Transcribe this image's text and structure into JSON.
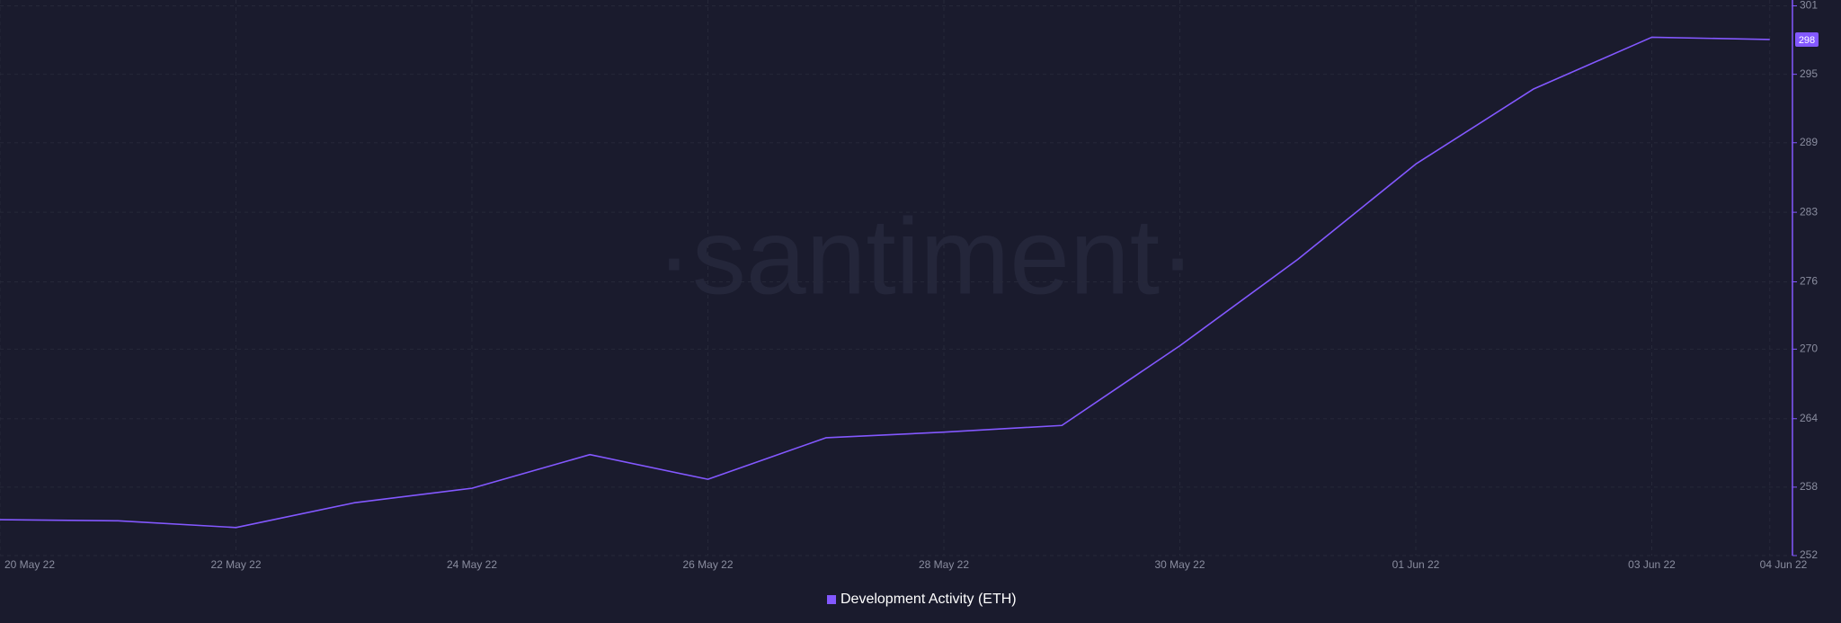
{
  "chart_data": {
    "type": "line",
    "watermark": "·santiment·",
    "categories": [
      "20 May 22",
      null,
      "22 May 22",
      null,
      "24 May 22",
      null,
      "26 May 22",
      null,
      "28 May 22",
      null,
      "30 May 22",
      null,
      "01 Jun 22",
      null,
      "03 Jun 22",
      "04 Jun 22"
    ],
    "series": [
      {
        "name": "Development Activity (ETH)",
        "color": "#8358ff",
        "values": [
          255.2,
          255.1,
          254.5,
          256.7,
          258.0,
          261.0,
          258.8,
          262.5,
          263.0,
          263.6,
          270.7,
          278.4,
          286.9,
          293.6,
          298.2,
          298
        ]
      }
    ],
    "ylim": [
      252,
      301
    ],
    "yticks": [
      252,
      {
        "value": 258.1,
        "label": "258"
      },
      {
        "value": 264.2,
        "label": "264"
      },
      {
        "value": 270.4,
        "label": "270"
      },
      {
        "value": 276.4,
        "label": "276"
      },
      {
        "value": 282.6,
        "label": "283"
      },
      {
        "value": 288.8,
        "label": "289"
      },
      {
        "value": 294.9,
        "label": "295"
      },
      301
    ],
    "grid": true
  }
}
